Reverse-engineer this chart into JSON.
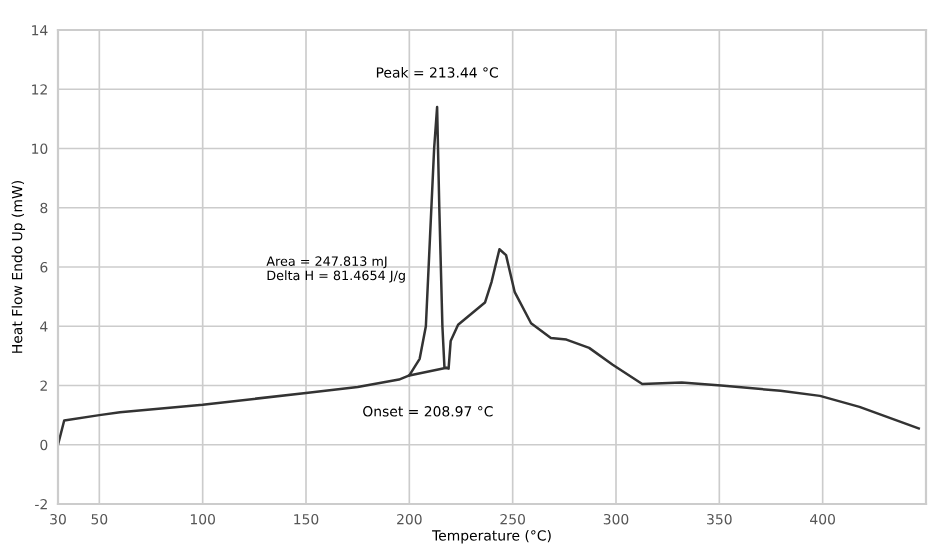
{
  "chart_data": {
    "type": "line",
    "xlabel": "Temperature (°C)",
    "ylabel": "Heat Flow Endo Up (mW)",
    "series": [
      {
        "color": "#333333",
        "x": [
          30,
          33,
          50,
          60,
          100,
          150,
          175,
          195,
          200,
          205,
          208,
          210,
          212,
          213.44,
          214.5,
          216,
          217,
          219,
          220,
          223.6,
          236.6,
          239.8,
          243.6,
          246.8,
          251,
          258.9,
          268.5,
          276,
          287,
          298.4,
          312.7,
          331.8,
          350.9,
          379.6,
          398.7,
          417.8,
          446.5
        ],
        "values": [
          0,
          0.82,
          1.0,
          1.1,
          1.35,
          1.75,
          1.95,
          2.2,
          2.34,
          2.9,
          4,
          7,
          10,
          11.4,
          8,
          4,
          2.6,
          2.57,
          3.5,
          4.05,
          4.8,
          5.5,
          6.6,
          6.4,
          5.15,
          4.1,
          3.6,
          3.55,
          3.27,
          2.7,
          2.05,
          2.1,
          2.0,
          1.82,
          1.65,
          1.28,
          0.55
        ]
      },
      {
        "color": "#333333",
        "x": [
          200,
          218
        ],
        "values": [
          2.34,
          2.6
        ]
      }
    ],
    "xlim": [
      30,
      450
    ],
    "xticks": [
      30,
      50,
      100,
      150,
      200,
      250,
      300,
      350,
      400
    ],
    "ylim": [
      -2,
      14
    ],
    "yticks": [
      -2,
      0,
      2,
      4,
      6,
      8,
      10,
      12,
      14
    ],
    "grid": true,
    "marker": "none",
    "line_style": "solid",
    "annotations": [
      {
        "text": "Peak = 213.44 °C",
        "x": 213.44,
        "y": 11.4
      },
      "Area = 247.813 mJ",
      "Delta H = 81.4654 J/g",
      {
        "text": "Onset = 208.97 °C",
        "x": 208.97,
        "y": 2.4
      }
    ]
  }
}
